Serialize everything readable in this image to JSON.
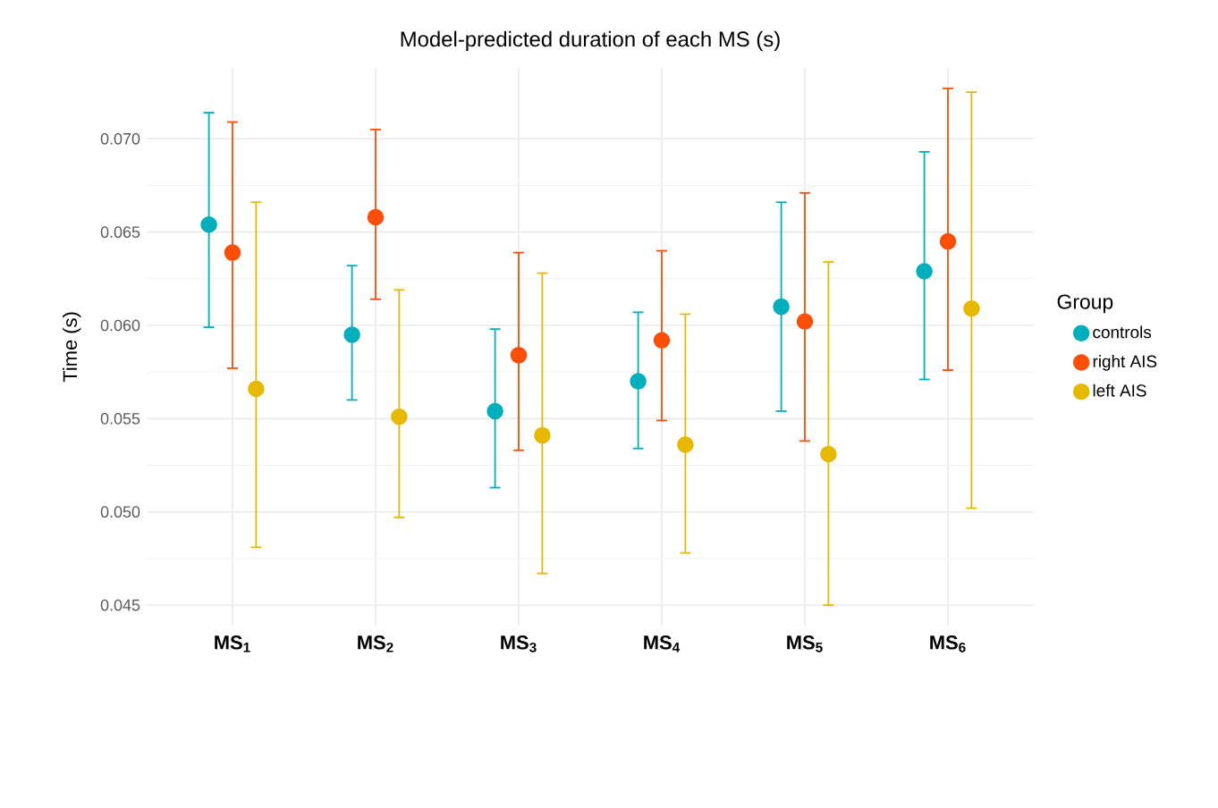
{
  "chart_data": {
    "type": "scatter",
    "title": "Model-predicted duration of each MS (s)",
    "ylabel": "Time (s)",
    "legend_title": "Group",
    "categories": [
      "**MS$_{1}$**",
      "**MS$_{2}$**",
      "**MS$_{3}$**",
      "**MS$_{4}$**",
      "**MS$_{5}$**",
      "**MS$_{6}$**"
    ],
    "series": [
      {
        "name": "controls",
        "color": "#00afbb",
        "values": [
          0.0654,
          0.0595,
          0.0554,
          0.057,
          0.061,
          0.0629
        ],
        "errors": [
          [
            0.0599,
            0.0714
          ],
          [
            0.056,
            0.0632
          ],
          [
            0.0513,
            0.0598
          ],
          [
            0.0534,
            0.0607
          ],
          [
            0.0554,
            0.0666
          ],
          [
            0.0571,
            0.0693
          ]
        ]
      },
      {
        "name": "right AIS",
        "color": "#fc4e07",
        "values": [
          0.0639,
          0.0658,
          0.0584,
          0.0592,
          0.0602,
          0.0645
        ],
        "errors": [
          [
            0.0577,
            0.0709
          ],
          [
            0.0614,
            0.0705
          ],
          [
            0.0533,
            0.0639
          ],
          [
            0.0549,
            0.064
          ],
          [
            0.0538,
            0.0671
          ],
          [
            0.0576,
            0.0727
          ]
        ]
      },
      {
        "name": "left AIS",
        "color": "#e7b800",
        "values": [
          0.0566,
          0.0551,
          0.0541,
          0.0536,
          0.0531,
          0.0609
        ],
        "errors": [
          [
            0.0481,
            0.0666
          ],
          [
            0.0497,
            0.0619
          ],
          [
            0.0467,
            0.0628
          ],
          [
            0.0478,
            0.0606
          ],
          [
            0.045,
            0.0634
          ],
          [
            0.0502,
            0.0725
          ]
        ]
      }
    ],
    "ylim": [
      0.0439,
      0.0738
    ],
    "yticks": [
      {
        "value": 0.045,
        "label": "0.045"
      },
      {
        "value": 0.05,
        "label": "0.050"
      },
      {
        "value": 0.055,
        "label": "0.055"
      },
      {
        "value": 0.06,
        "label": "0.060"
      },
      {
        "value": 0.065,
        "label": "0.065"
      },
      {
        "value": 0.07,
        "label": "0.070"
      }
    ],
    "grid": true,
    "legend": "right",
    "marker": "circle"
  }
}
